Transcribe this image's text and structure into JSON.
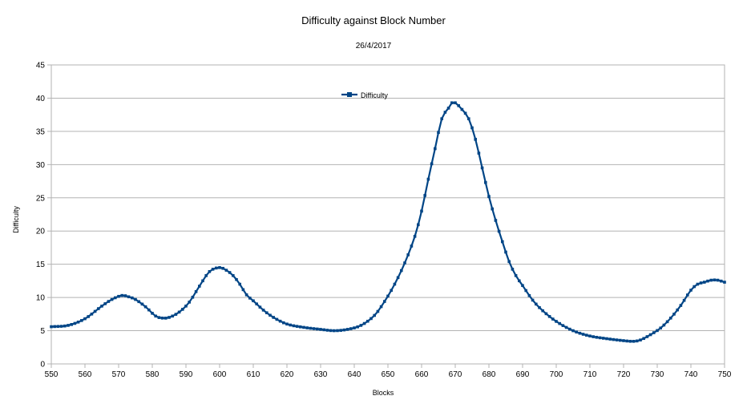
{
  "chart_data": {
    "type": "line",
    "title": "Difficulty against Block Number",
    "subtitle": "26/4/2017",
    "xlabel": "Blocks",
    "ylabel": "Difficulty",
    "xlim": [
      550,
      750
    ],
    "ylim": [
      0,
      45
    ],
    "xticks": [
      550,
      560,
      570,
      580,
      590,
      600,
      610,
      620,
      630,
      640,
      650,
      660,
      670,
      680,
      690,
      700,
      710,
      720,
      730,
      740,
      750
    ],
    "yticks": [
      0,
      5,
      10,
      15,
      20,
      25,
      30,
      35,
      40,
      45
    ],
    "grid": "horizontal",
    "legend_position": "top-center",
    "series_color": "#004586",
    "series": [
      {
        "name": "Difficulty",
        "x": [
          550,
          555,
          560,
          565,
          568,
          571,
          573,
          575,
          578,
          581,
          583,
          585,
          588,
          591,
          594,
          597,
          600,
          602,
          604,
          606,
          608,
          610,
          613,
          616,
          620,
          625,
          630,
          634,
          638,
          642,
          646,
          649,
          652,
          655,
          658,
          660,
          662,
          664,
          666,
          668,
          669,
          670,
          672,
          674,
          676,
          678,
          680,
          682,
          684,
          686,
          688,
          690,
          693,
          696,
          700,
          705,
          710,
          715,
          720,
          723,
          725,
          728,
          731,
          734,
          737,
          740,
          742,
          744,
          746,
          748,
          750
        ],
        "y": [
          5.6,
          5.8,
          6.8,
          8.7,
          9.7,
          10.3,
          10.1,
          9.7,
          8.6,
          7.2,
          6.9,
          7.0,
          7.8,
          9.3,
          11.7,
          13.9,
          14.5,
          14.1,
          13.3,
          12.0,
          10.4,
          9.5,
          8.1,
          7.0,
          6.0,
          5.5,
          5.2,
          5.0,
          5.2,
          5.8,
          7.3,
          9.4,
          12.0,
          15.2,
          19.2,
          23.0,
          27.8,
          32.4,
          36.9,
          38.5,
          39.3,
          39.3,
          38.3,
          36.9,
          33.8,
          29.5,
          25.2,
          21.6,
          18.4,
          15.4,
          13.3,
          11.8,
          9.6,
          8.0,
          6.4,
          5.0,
          4.2,
          3.8,
          3.5,
          3.4,
          3.6,
          4.4,
          5.4,
          6.9,
          8.8,
          11.1,
          12.0,
          12.3,
          12.6,
          12.6,
          12.3
        ]
      }
    ]
  }
}
